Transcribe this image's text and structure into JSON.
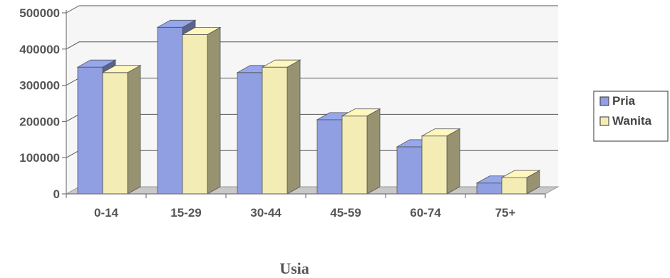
{
  "chart_data": {
    "type": "bar",
    "categories": [
      "0-14",
      "15-29",
      "30-44",
      "45-59",
      "60-74",
      "75+"
    ],
    "series": [
      {
        "name": "Pria",
        "values": [
          350000,
          460000,
          335000,
          205000,
          130000,
          30000
        ]
      },
      {
        "name": "Wanita",
        "values": [
          335000,
          440000,
          350000,
          215000,
          160000,
          45000
        ]
      }
    ],
    "y_ticks": [
      "500000",
      "400000",
      "300000",
      "200000",
      "100000",
      "0"
    ],
    "ylim": [
      0,
      500000
    ],
    "xlabel": "Usia",
    "ylabel": "",
    "grid": true,
    "legend": "right",
    "three_d": true,
    "colors": {
      "Pria": "#8f9fe2",
      "Wanita": "#f4ecb5",
      "grid": "#555555",
      "floor": "#c8c8c8",
      "wall": "#e6e6e6"
    }
  }
}
